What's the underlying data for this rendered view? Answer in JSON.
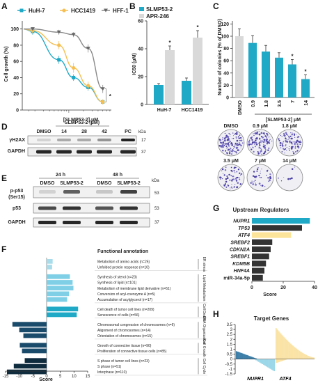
{
  "figure": {
    "panels": {
      "A": "A",
      "B": "B",
      "C": "C",
      "D": "D",
      "E": "E",
      "F": "F",
      "G": "G",
      "H": "H"
    },
    "colors": {
      "teal": "#1fa9c6",
      "orange": "#f5bf52",
      "gray": "#888888",
      "lightgray": "#d9d9d9",
      "dark": "#333333",
      "navy": "#1b4b6b",
      "highlight": "#fde49b"
    },
    "panel_A": {
      "legend": [
        "HuH-7",
        "HCC1419",
        "HFF-1"
      ],
      "ylabel": "Cell growth (%)",
      "xlabel": "[SLMP53-2] μM",
      "yticks": [
        "0",
        "20",
        "40",
        "60",
        "80",
        "100"
      ],
      "star": "*"
    },
    "panel_B": {
      "legend": [
        "SLMP53-2",
        "APR-246"
      ],
      "ylabel": "IC50 (μM)",
      "yticks": [
        "0",
        "20",
        "40",
        "60"
      ],
      "categories": [
        "HuH-7",
        "HCC1419"
      ],
      "star": "*"
    },
    "panel_C": {
      "ylabel": "Number of colonies (% of DMSO)",
      "yticks": [
        "0",
        "20",
        "40",
        "60",
        "80",
        "100",
        "120"
      ],
      "categories": [
        "DMSO",
        "0.9",
        "1.8",
        "3.5",
        "7",
        "14"
      ],
      "group_label": "[SLMP53-2] μM",
      "star": "*",
      "wells": [
        "DMSO",
        "0.9 μM",
        "1.8 μM",
        "3.5 μM",
        "7 μM",
        "14 μM"
      ]
    },
    "panel_D": {
      "header": "SLMP53-2 (μM)",
      "lanes": [
        "DMSO",
        "14",
        "28",
        "42",
        "PC"
      ],
      "rows": [
        "γH2AX",
        "GAPDH"
      ],
      "kda": [
        "kDa",
        "17",
        "37"
      ]
    },
    "panel_E": {
      "times": [
        "24 h",
        "48 h"
      ],
      "lanes": [
        "DMSO",
        "SLMP53-2",
        "DMSO",
        "SLMP53-2"
      ],
      "rows": [
        "p-p53",
        "(Ser15)",
        "p53",
        "GAPDH"
      ],
      "kda": [
        "kDa",
        "53",
        "53",
        "37"
      ]
    },
    "panel_F": {
      "header": "Functional annotation",
      "xlabel": "Score",
      "xticks": [
        "-15",
        "-10",
        "-5",
        "0",
        "5",
        "10",
        "15"
      ],
      "groups": [
        {
          "name": "ER stress",
          "items": [
            "Metabolism of amino acids (n=25)",
            "Unfolded protein response (n=10)"
          ]
        },
        {
          "name": "Lipid Metabolism",
          "items": [
            "Synthesis of sterol (n=23)",
            "Synthesis of lipid (n=101)",
            "Metabolism of membrane lipid derivative (n=51)",
            "Conversion of acyl-coenzyme A (n=5)",
            "Accumulation of acylglycerol (n=17)"
          ]
        },
        {
          "name": "Cell Death",
          "items": [
            "Cell death of tumor cell lines (n=209)",
            "Senescence of cells (n=56)"
          ]
        },
        {
          "name": "DNA Organization",
          "items": [
            "Chromosomal congression of chromosomes (n=6)",
            "Alignment of chromosomes (n=14)",
            "Orientation of chromosomes (n=15)"
          ]
        },
        {
          "name": "Cell Growth",
          "items": [
            "Growth of connective tissue (n=90)",
            "Proliferation of connective tissue cells (n=85)"
          ]
        },
        {
          "name": "Cell Cycle",
          "items": [
            "S phase of tumor cell lines (n=23)",
            "S phase (n=51)",
            "Interphase (n=110)"
          ]
        }
      ]
    },
    "panel_G": {
      "title": "Upstream Regulators",
      "xlabel": "Score",
      "xticks": [
        "0",
        "20",
        "40"
      ],
      "regulators": [
        "NUPR1",
        "TP53",
        "ATF4",
        "SREBF2",
        "CDKN2A",
        "SREBF1",
        "KDM5B",
        "HNF4A",
        "miR-34a-5p"
      ]
    },
    "panel_H": {
      "title": "Target Genes",
      "yticks": [
        "3.5",
        "3",
        "2.5",
        "2",
        "1.5",
        "1",
        "0.5",
        "0",
        "-0.5",
        "-1",
        "-1.5"
      ],
      "genes": [
        "NUPR1",
        "ATF4"
      ]
    }
  },
  "chart_data": [
    {
      "panel": "A",
      "type": "line",
      "xlabel": "[SLMP53-2] μM",
      "ylabel": "Cell growth (%)",
      "ylim": [
        0,
        110
      ],
      "xscale": "log",
      "series": [
        {
          "name": "HuH-7",
          "x": [
            1.8,
            6.25,
            12.5,
            25,
            50
          ],
          "y": [
            97,
            62,
            40,
            28,
            10
          ],
          "err": [
            4,
            5,
            4,
            4,
            3
          ]
        },
        {
          "name": "HCC1419",
          "x": [
            1.8,
            6.25,
            12.5,
            25,
            50
          ],
          "y": [
            98,
            80,
            52,
            30,
            10
          ],
          "err": [
            3,
            5,
            6,
            5,
            3
          ]
        },
        {
          "name": "HFF-1",
          "x": [
            1.8,
            6.25,
            12.5,
            25,
            50
          ],
          "y": [
            100,
            96,
            93,
            76,
            26
          ],
          "err": [
            2,
            3,
            3,
            5,
            5
          ]
        }
      ]
    },
    {
      "panel": "B",
      "type": "bar",
      "categories": [
        "HuH-7",
        "HCC1419"
      ],
      "ylabel": "IC50 (μM)",
      "ylim": [
        0,
        60
      ],
      "series": [
        {
          "name": "SLMP53-2",
          "values": [
            14,
            17
          ],
          "err": [
            1,
            2
          ]
        },
        {
          "name": "APR-246",
          "values": [
            39,
            48
          ],
          "err": [
            3,
            5
          ]
        }
      ]
    },
    {
      "panel": "C",
      "type": "bar",
      "categories": [
        "DMSO",
        "0.9",
        "1.8",
        "3.5",
        "7",
        "14"
      ],
      "ylabel": "Number of colonies (% of DMSO)",
      "ylim": [
        0,
        120
      ],
      "values": [
        100,
        89,
        75,
        65,
        54,
        30
      ],
      "err": [
        12,
        12,
        10,
        8,
        8,
        7
      ]
    },
    {
      "panel": "F",
      "type": "bar",
      "orientation": "horizontal",
      "xlabel": "Score",
      "xlim": [
        -15,
        15
      ],
      "values": [
        2.2,
        2.0,
        8.5,
        9.5,
        9.8,
        8.2,
        7.5,
        11.5,
        11,
        -12.5,
        -10,
        -8.5,
        -9.8,
        -9,
        -8,
        -12,
        -14.5
      ]
    },
    {
      "panel": "G",
      "type": "bar",
      "orientation": "horizontal",
      "xlabel": "Score",
      "xlim": [
        0,
        40
      ],
      "categories": [
        "NUPR1",
        "TP53",
        "ATF4",
        "SREBF2",
        "CDKN2A",
        "SREBF1",
        "KDM5B",
        "HNF4A",
        "miR-34a-5p"
      ],
      "values": [
        37,
        32,
        25,
        13,
        12,
        11,
        9,
        8,
        7
      ]
    },
    {
      "panel": "H",
      "type": "bar",
      "ylim": [
        -1.5,
        3.5
      ],
      "series": [
        {
          "name": "NUPR1",
          "up_start": 0.8,
          "down_start": -1.3
        },
        {
          "name": "ATF4",
          "up_start": 3.0,
          "down_start": -0.4
        }
      ]
    }
  ]
}
